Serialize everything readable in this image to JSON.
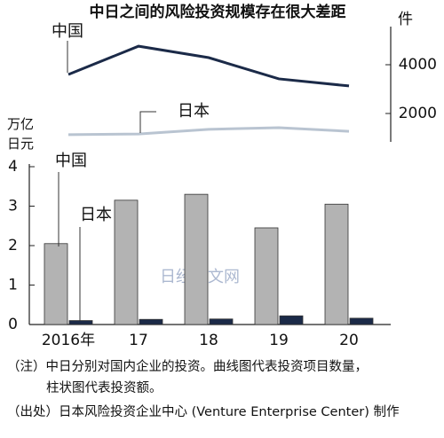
{
  "chart_data": {
    "type": "bar-line",
    "title": "中日之间的风险投资规模存在很大差距",
    "y_label": "万亿日元",
    "y2_label": "件",
    "categories": [
      "2016年",
      "17",
      "18",
      "19",
      "20"
    ],
    "ylim": [
      0,
      4
    ],
    "yticks": [
      0,
      1,
      2,
      3,
      4
    ],
    "y2lim": [
      800,
      5600
    ],
    "y2ticks": [
      2000,
      4000
    ],
    "series": [
      {
        "name": "中国",
        "type": "bar",
        "color": "#b3b3b3",
        "values": [
          2.05,
          3.15,
          3.3,
          2.45,
          3.05
        ]
      },
      {
        "name": "日本",
        "type": "bar",
        "color": "#1b2a48",
        "values": [
          0.1,
          0.13,
          0.14,
          0.22,
          0.16
        ]
      },
      {
        "name": "中国",
        "type": "line",
        "axis": "y2",
        "color": "#1b2a48",
        "values": [
          3600,
          4760,
          4290,
          3420,
          3130
        ]
      },
      {
        "name": "日本",
        "type": "line",
        "axis": "y2",
        "color": "#b9c4d1",
        "values": [
          1130,
          1160,
          1350,
          1420,
          1270
        ]
      }
    ],
    "watermark": "日经中文网",
    "notes": [
      "（注）中日分别对国内企业的投资。曲线图代表投资项目数量，",
      "柱状图代表投资额。",
      "（出处）日本风险投资企业中心 (Venture Enterprise Center) 制作"
    ]
  }
}
